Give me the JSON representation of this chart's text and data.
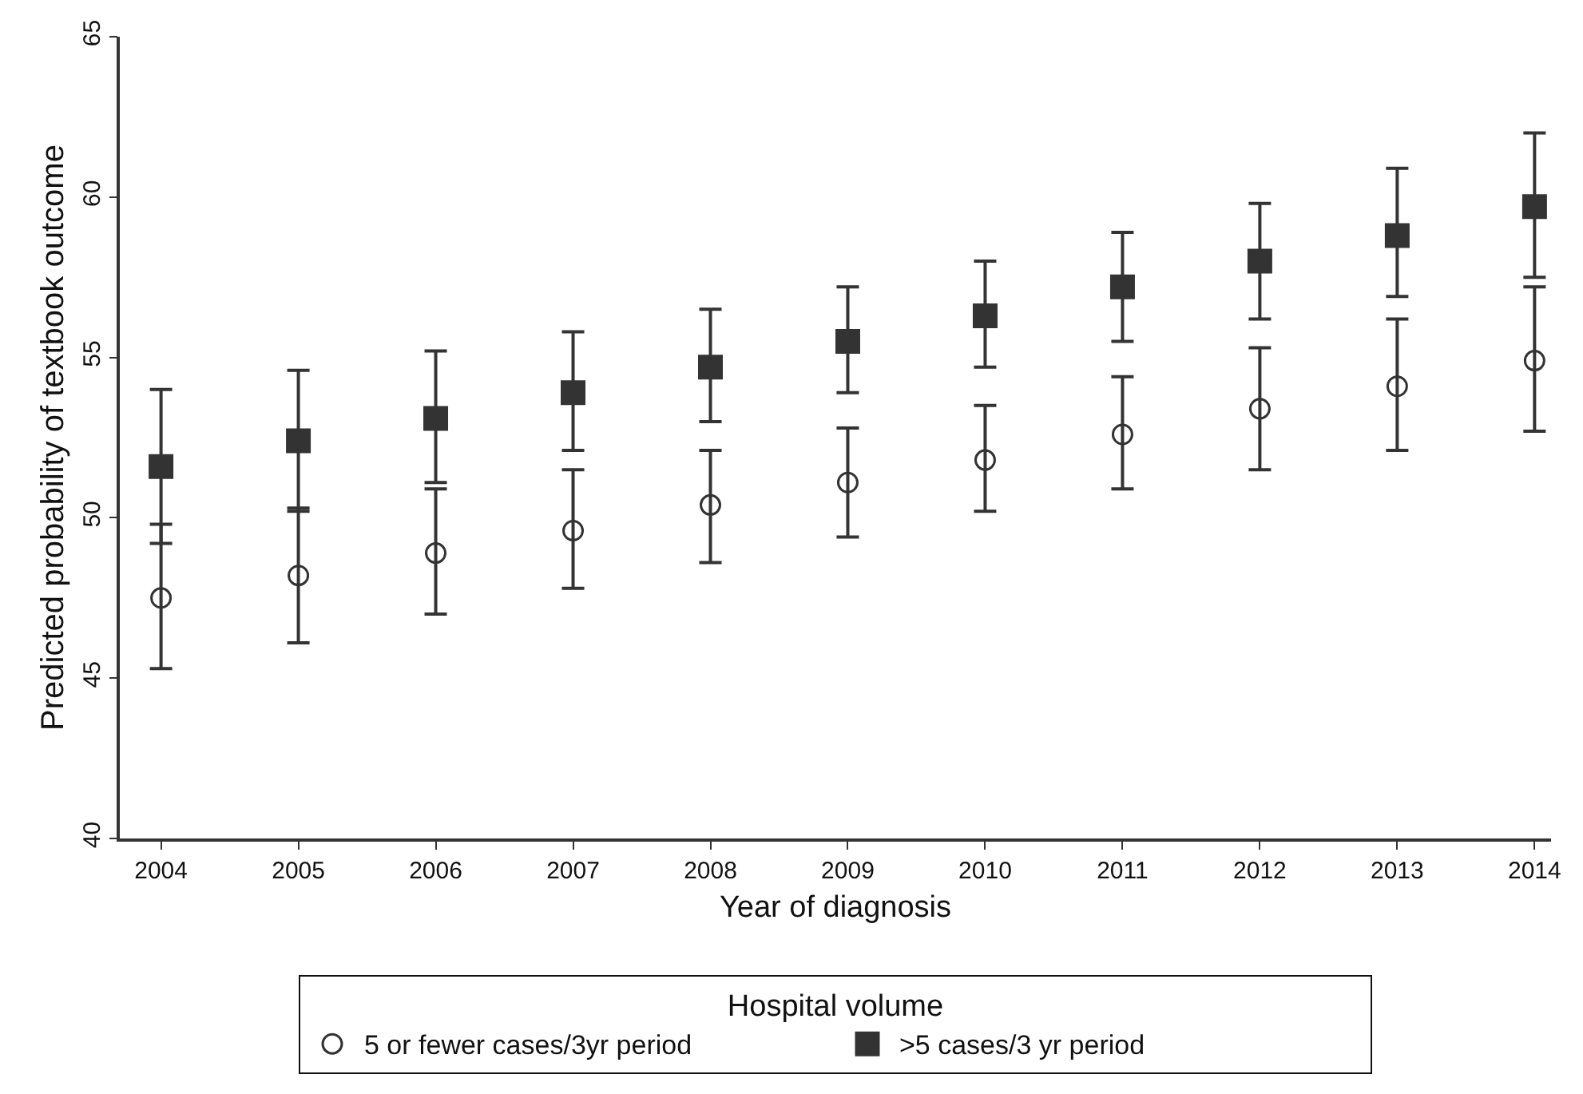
{
  "chart_data": {
    "type": "scatter",
    "xlabel": "Year of diagnosis",
    "ylabel": "Predicted probability of textbook outcome",
    "legend_title": "Hospital volume",
    "legend": "bottom",
    "categories": [
      "2004",
      "2005",
      "2006",
      "2007",
      "2008",
      "2009",
      "2010",
      "2011",
      "2012",
      "2013",
      "2014"
    ],
    "ylim": [
      40,
      65
    ],
    "yticks": [
      40,
      45,
      50,
      55,
      60,
      65
    ],
    "series": [
      {
        "name": "5 or fewer cases/3yr period",
        "color": "#333333",
        "marker": "circle-open",
        "values": [
          47.5,
          48.2,
          48.9,
          49.6,
          50.4,
          51.1,
          51.8,
          52.6,
          53.4,
          54.1,
          54.9
        ],
        "errors": [
          [
            45.3,
            49.8
          ],
          [
            46.1,
            50.3
          ],
          [
            47.0,
            50.9
          ],
          [
            47.8,
            51.5
          ],
          [
            48.6,
            52.1
          ],
          [
            49.4,
            52.8
          ],
          [
            50.2,
            53.5
          ],
          [
            50.9,
            54.4
          ],
          [
            51.5,
            55.3
          ],
          [
            52.1,
            56.2
          ],
          [
            52.7,
            57.2
          ]
        ]
      },
      {
        "name": ">5 cases/3 yr period",
        "color": "#333333",
        "marker": "square",
        "values": [
          51.6,
          52.4,
          53.1,
          53.9,
          54.7,
          55.5,
          56.3,
          57.2,
          58.0,
          58.8,
          59.7
        ],
        "errors": [
          [
            49.2,
            54.0
          ],
          [
            50.2,
            54.6
          ],
          [
            51.1,
            55.2
          ],
          [
            52.1,
            55.8
          ],
          [
            53.0,
            56.5
          ],
          [
            53.9,
            57.2
          ],
          [
            54.7,
            58.0
          ],
          [
            55.5,
            58.9
          ],
          [
            56.2,
            59.8
          ],
          [
            56.9,
            60.9
          ],
          [
            57.5,
            62.0
          ]
        ]
      }
    ]
  }
}
